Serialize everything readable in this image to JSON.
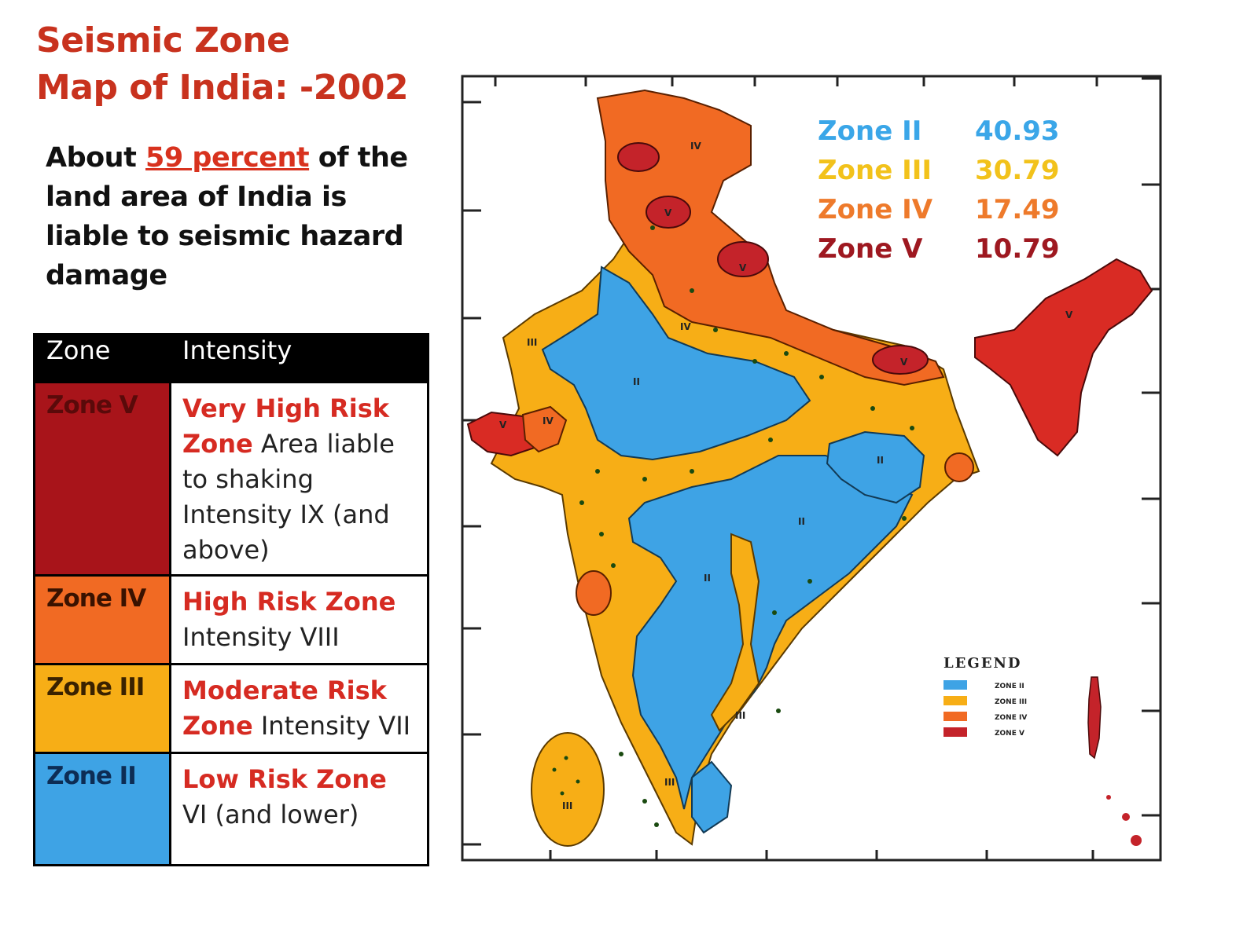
{
  "title": {
    "line1": "Seismic Zone",
    "line2": "Map of India: -2002"
  },
  "intro": {
    "before": "About ",
    "highlight": "59 percent",
    "after": " of the land area of India is liable to seismic hazard damage"
  },
  "table": {
    "headers": {
      "zone": "Zone",
      "intensity": "Intensity"
    },
    "rows": [
      {
        "zone": "Zone V",
        "risk": "Very High Risk Zone",
        "desc": " Area liable to shaking Intensity IX (and above)",
        "color": "#a8141a"
      },
      {
        "zone": "Zone IV",
        "risk": "High Risk  Zone",
        "desc": "Intensity VIII",
        "color": "#f16a23"
      },
      {
        "zone": "Zone III",
        "risk": "Moderate Risk Zone",
        "desc": " Intensity VII",
        "color": "#f7ae16"
      },
      {
        "zone": "Zone II",
        "risk": "Low Risk Zone",
        "desc": "VI (and lower)",
        "color": "#3ea3e5"
      }
    ]
  },
  "percentages": [
    {
      "zone": "Zone II",
      "value": "40.93",
      "color": "#3aa6e8"
    },
    {
      "zone": "Zone III",
      "value": "30.79",
      "color": "#f2c21b"
    },
    {
      "zone": "Zone IV",
      "value": "17.49",
      "color": "#ee7a2b"
    },
    {
      "zone": "Zone V",
      "value": "10.79",
      "color": "#9e1820"
    }
  ],
  "map": {
    "zone_colors": {
      "II": "#3ea3e5",
      "III": "#f7ae16",
      "IV": "#f16a23",
      "V": "#d92b24"
    },
    "legend": {
      "title": "LEGEND",
      "items": [
        "ZONE II",
        "ZONE III",
        "ZONE IV",
        "ZONE V"
      ]
    },
    "zone_labels": [
      "II",
      "III",
      "IV",
      "V"
    ]
  }
}
